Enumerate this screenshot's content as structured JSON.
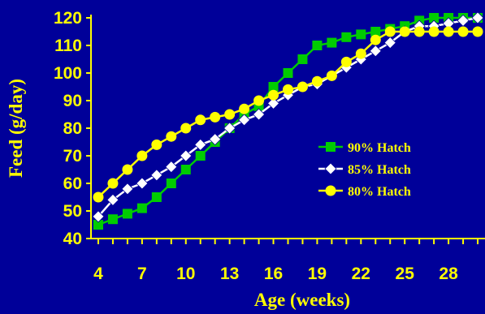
{
  "chart_data": {
    "type": "line",
    "xlabel": "Age (weeks)",
    "ylabel": "Feed (g/day)",
    "xlim": [
      3.5,
      30.5
    ],
    "ylim": [
      40,
      120
    ],
    "x_ticks": [
      4,
      7,
      10,
      13,
      16,
      19,
      22,
      25,
      28
    ],
    "y_ticks": [
      40,
      50,
      60,
      70,
      80,
      90,
      100,
      110,
      120
    ],
    "grid": false,
    "legend_position": "right",
    "x": [
      4,
      5,
      6,
      7,
      8,
      9,
      10,
      11,
      12,
      13,
      14,
      15,
      16,
      17,
      18,
      19,
      20,
      21,
      22,
      23,
      24,
      25,
      26,
      27,
      28,
      29,
      30
    ],
    "series": [
      {
        "name": "90% Hatch",
        "color": "#00cc00",
        "marker": "square",
        "values": [
          45,
          47,
          49,
          51,
          55,
          60,
          65,
          70,
          75,
          80,
          85,
          88,
          95,
          100,
          105,
          110,
          111,
          113,
          114,
          115,
          116,
          117,
          119,
          120,
          120,
          120,
          120
        ]
      },
      {
        "name": "85% Hatch",
        "color": "#ffffff",
        "marker": "diamond",
        "values": [
          48,
          54,
          58,
          60,
          63,
          66,
          70,
          74,
          76,
          80,
          83,
          85,
          89,
          92,
          95,
          96,
          99,
          102,
          105,
          108,
          111,
          115,
          117,
          117,
          118,
          119,
          120
        ]
      },
      {
        "name": "80% Hatch",
        "color": "#ffff00",
        "marker": "circle",
        "values": [
          55,
          60,
          65,
          70,
          74,
          77,
          80,
          83,
          84,
          85,
          87,
          90,
          92,
          94,
          95,
          97,
          99,
          104,
          107,
          112,
          115,
          115,
          115,
          115,
          115,
          115,
          115
        ]
      }
    ]
  },
  "colors": {
    "background": "#000099",
    "axis": "#ffff00",
    "text": "#ffff00"
  }
}
